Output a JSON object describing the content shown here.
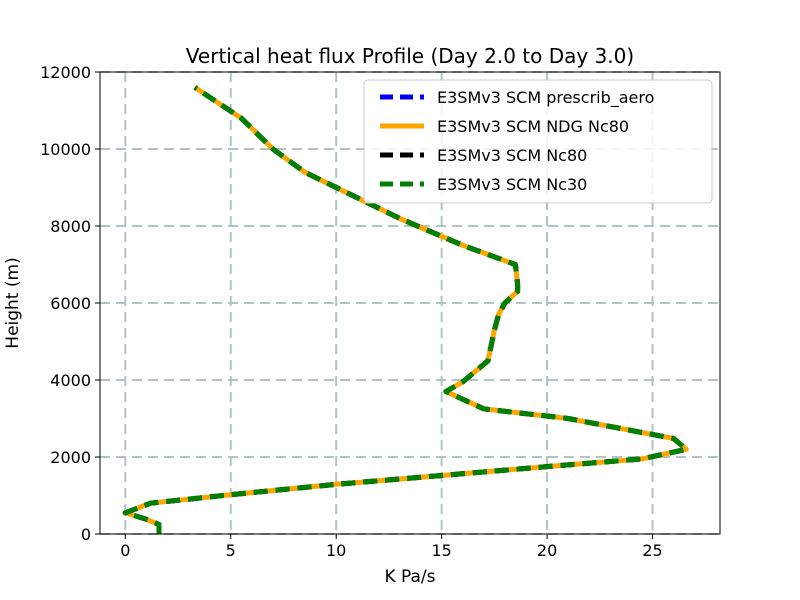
{
  "chart_data": {
    "type": "line",
    "title": "Vertical heat flux Profile (Day 2.0 to Day 3.0)",
    "xlabel": "K Pa/s",
    "ylabel": "Height (m)",
    "xlim": [
      -1.2,
      28.2
    ],
    "ylim": [
      0,
      12000
    ],
    "xticks": [
      0,
      5,
      10,
      15,
      20,
      25
    ],
    "yticks": [
      0,
      2000,
      4000,
      6000,
      8000,
      10000,
      12000
    ],
    "grid": true,
    "legend_position": "top-right",
    "series": [
      {
        "name": "E3SMv3 SCM prescrib_aero",
        "color": "#0000ff",
        "style": "dashed",
        "points": [
          [
            1.6,
            0
          ],
          [
            1.6,
            250
          ],
          [
            0.9,
            400
          ],
          [
            0,
            550
          ],
          [
            1.2,
            800
          ],
          [
            5,
            1020
          ],
          [
            10,
            1290
          ],
          [
            15,
            1520
          ],
          [
            20,
            1750
          ],
          [
            24.5,
            1950
          ],
          [
            26.6,
            2200
          ],
          [
            26,
            2480
          ],
          [
            21,
            3000
          ],
          [
            17,
            3250
          ],
          [
            15.2,
            3700
          ],
          [
            16,
            3950
          ],
          [
            17.2,
            4500
          ],
          [
            17.5,
            5300
          ],
          [
            17.7,
            5700
          ],
          [
            18,
            6000
          ],
          [
            18.6,
            6300
          ],
          [
            18.6,
            6500
          ],
          [
            18.5,
            7000
          ],
          [
            16,
            7500
          ],
          [
            13,
            8200
          ],
          [
            10,
            9000
          ],
          [
            8.5,
            9400
          ],
          [
            7,
            10000
          ],
          [
            5.5,
            10800
          ],
          [
            3.3,
            11600
          ]
        ]
      },
      {
        "name": "E3SMv3 SCM NDG Nc80",
        "color": "#ffa500",
        "style": "solid",
        "points": [
          [
            1.6,
            0
          ],
          [
            1.6,
            250
          ],
          [
            0.9,
            400
          ],
          [
            0,
            550
          ],
          [
            1.2,
            800
          ],
          [
            5,
            1020
          ],
          [
            10,
            1290
          ],
          [
            15,
            1520
          ],
          [
            20,
            1750
          ],
          [
            24.5,
            1950
          ],
          [
            26.6,
            2200
          ],
          [
            26,
            2480
          ],
          [
            21,
            3000
          ],
          [
            17,
            3250
          ],
          [
            15.2,
            3700
          ],
          [
            16,
            3950
          ],
          [
            17.2,
            4500
          ],
          [
            17.5,
            5300
          ],
          [
            17.7,
            5700
          ],
          [
            18,
            6000
          ],
          [
            18.6,
            6300
          ],
          [
            18.6,
            6500
          ],
          [
            18.5,
            7000
          ],
          [
            16,
            7500
          ],
          [
            13,
            8200
          ],
          [
            10,
            9000
          ],
          [
            8.5,
            9400
          ],
          [
            7,
            10000
          ],
          [
            5.5,
            10800
          ],
          [
            3.3,
            11600
          ]
        ]
      },
      {
        "name": "E3SMv3 SCM Nc80",
        "color": "#000000",
        "style": "dashed",
        "points": [
          [
            1.6,
            0
          ],
          [
            1.6,
            250
          ],
          [
            0.9,
            400
          ],
          [
            0,
            550
          ],
          [
            1.2,
            800
          ],
          [
            5,
            1020
          ],
          [
            10,
            1290
          ],
          [
            15,
            1520
          ],
          [
            20,
            1750
          ],
          [
            24.5,
            1950
          ],
          [
            26.6,
            2200
          ],
          [
            26,
            2480
          ],
          [
            21,
            3000
          ],
          [
            17,
            3250
          ],
          [
            15.2,
            3700
          ],
          [
            16,
            3950
          ],
          [
            17.2,
            4500
          ],
          [
            17.5,
            5300
          ],
          [
            17.7,
            5700
          ],
          [
            18,
            6000
          ],
          [
            18.6,
            6300
          ],
          [
            18.6,
            6500
          ],
          [
            18.5,
            7000
          ],
          [
            16,
            7500
          ],
          [
            13,
            8200
          ],
          [
            10,
            9000
          ],
          [
            8.5,
            9400
          ],
          [
            7,
            10000
          ],
          [
            5.5,
            10800
          ],
          [
            3.3,
            11600
          ]
        ]
      },
      {
        "name": "E3SMv3 SCM Nc30",
        "color": "#008000",
        "style": "dashed",
        "points": [
          [
            1.6,
            0
          ],
          [
            1.6,
            250
          ],
          [
            0.9,
            400
          ],
          [
            0,
            550
          ],
          [
            1.2,
            800
          ],
          [
            5,
            1020
          ],
          [
            10,
            1290
          ],
          [
            15,
            1520
          ],
          [
            20,
            1750
          ],
          [
            24.5,
            1950
          ],
          [
            26.6,
            2200
          ],
          [
            26,
            2480
          ],
          [
            21,
            3000
          ],
          [
            17,
            3250
          ],
          [
            15.2,
            3700
          ],
          [
            16,
            3950
          ],
          [
            17.2,
            4500
          ],
          [
            17.5,
            5300
          ],
          [
            17.7,
            5700
          ],
          [
            18,
            6000
          ],
          [
            18.6,
            6300
          ],
          [
            18.6,
            6500
          ],
          [
            18.5,
            7000
          ],
          [
            16,
            7500
          ],
          [
            13,
            8200
          ],
          [
            10,
            9000
          ],
          [
            8.5,
            9400
          ],
          [
            7,
            10000
          ],
          [
            5.5,
            10800
          ],
          [
            3.3,
            11600
          ]
        ]
      }
    ]
  }
}
